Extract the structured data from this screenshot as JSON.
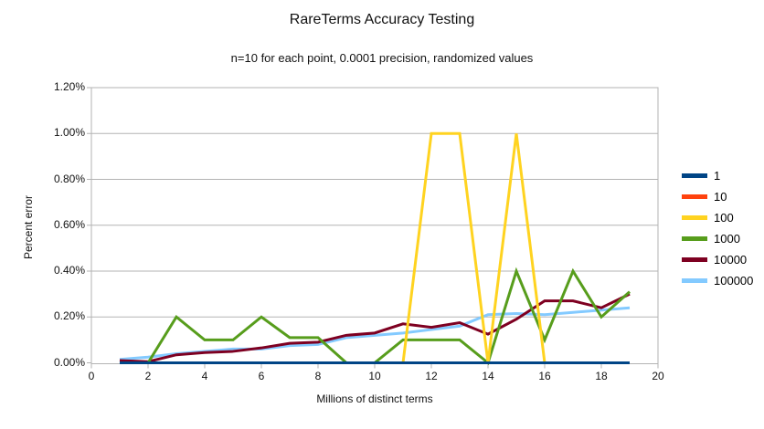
{
  "chart_data": {
    "type": "line",
    "title": "RareTerms Accuracy Testing",
    "subtitle": "n=10 for each point, 0.0001 precision, randomized values",
    "xlabel": "Millions of distinct terms",
    "ylabel": "Percent error",
    "xlim": [
      0,
      20
    ],
    "ylim_percent": [
      0,
      1.2
    ],
    "x_tick_labels": [
      "0",
      "2",
      "4",
      "6",
      "8",
      "10",
      "12",
      "14",
      "16",
      "18",
      "20"
    ],
    "y_tick_labels": [
      "0.00%",
      "0.20%",
      "0.40%",
      "0.60%",
      "0.80%",
      "1.00%",
      "1.20%"
    ],
    "grid": "horizontal-only",
    "grid_color": "#b3b3b3",
    "legend_position": "right",
    "x": [
      1,
      2,
      3,
      4,
      5,
      6,
      7,
      8,
      9,
      10,
      11,
      12,
      13,
      14,
      15,
      16,
      17,
      18,
      19
    ],
    "series": [
      {
        "name": "1",
        "color": "#004586",
        "values_percent": [
          0,
          0,
          0,
          0,
          0,
          0,
          0,
          0,
          0,
          0,
          0,
          0,
          0,
          0,
          0,
          0,
          0,
          0,
          0
        ]
      },
      {
        "name": "10",
        "color": "#ff420e",
        "values_percent": [
          0,
          0,
          0,
          0,
          0,
          0,
          0,
          0,
          0,
          0,
          0,
          0,
          0,
          0,
          0,
          0,
          0,
          0,
          0
        ]
      },
      {
        "name": "100",
        "color": "#ffd320",
        "values_percent": [
          0,
          0,
          0,
          0,
          0,
          0,
          0,
          0,
          0,
          0,
          0,
          1.0,
          1.0,
          0,
          1.0,
          0,
          0,
          0,
          0
        ]
      },
      {
        "name": "1000",
        "color": "#579d1c",
        "values_percent": [
          0,
          0,
          0.2,
          0.1,
          0.1,
          0.2,
          0.11,
          0.11,
          0,
          0,
          0.1,
          0.1,
          0.1,
          0,
          0.4,
          0.1,
          0.4,
          0.2,
          0.31
        ]
      },
      {
        "name": "10000",
        "color": "#7e0021",
        "values_percent": [
          0.01,
          0.005,
          0.035,
          0.045,
          0.05,
          0.065,
          0.085,
          0.09,
          0.12,
          0.13,
          0.17,
          0.155,
          0.175,
          0.125,
          0.19,
          0.27,
          0.27,
          0.24,
          0.3
        ]
      },
      {
        "name": "100000",
        "color": "#83caff",
        "values_percent": [
          0.015,
          0.025,
          0.04,
          0.05,
          0.06,
          0.06,
          0.075,
          0.08,
          0.11,
          0.12,
          0.13,
          0.145,
          0.16,
          0.21,
          0.215,
          0.21,
          0.22,
          0.23,
          0.24
        ]
      }
    ]
  }
}
